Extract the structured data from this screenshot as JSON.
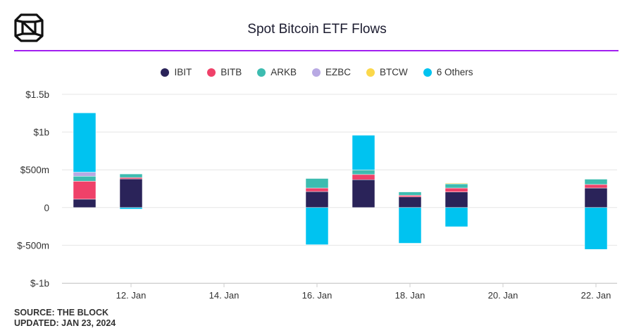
{
  "header": {
    "title": "Spot Bitcoin ETF Flows"
  },
  "footer": {
    "source": "SOURCE: THE BLOCK",
    "updated": "UPDATED: JAN 23, 2024"
  },
  "chart_data": {
    "type": "bar",
    "stacked": true,
    "title": "Spot Bitcoin ETF Flows",
    "xlabel": "",
    "ylabel": "",
    "legend": "top-center",
    "grid": true,
    "ylim": [
      -1000,
      1500
    ],
    "y_unit": "millions USD",
    "y_ticks": [
      {
        "value": 1500,
        "label": "$1.5b"
      },
      {
        "value": 1000,
        "label": "$1b"
      },
      {
        "value": 500,
        "label": "$500m"
      },
      {
        "value": 0,
        "label": "0"
      },
      {
        "value": -500,
        "label": "$-500m"
      },
      {
        "value": -1000,
        "label": "$-1b"
      }
    ],
    "x_ticks": [
      {
        "day": 12,
        "label": "12. Jan"
      },
      {
        "day": 14,
        "label": "14. Jan"
      },
      {
        "day": 16,
        "label": "16. Jan"
      },
      {
        "day": 18,
        "label": "18. Jan"
      },
      {
        "day": 20,
        "label": "20. Jan"
      },
      {
        "day": 22,
        "label": "22. Jan"
      }
    ],
    "categories": [
      "11. Jan",
      "12. Jan",
      "16. Jan",
      "17. Jan",
      "18. Jan",
      "19. Jan",
      "22. Jan"
    ],
    "days": [
      11,
      12,
      16,
      17,
      18,
      19,
      22
    ],
    "series": [
      {
        "name": "IBIT",
        "color": "#2a2359",
        "values": [
          111,
          380,
          212,
          369,
          141,
          207,
          259
        ]
      },
      {
        "name": "BITB",
        "color": "#ef4169",
        "values": [
          238,
          18,
          47,
          69,
          21,
          52,
          47
        ]
      },
      {
        "name": "ARKB",
        "color": "#3dbcb0",
        "values": [
          66,
          47,
          126,
          60,
          45,
          54,
          70
        ]
      },
      {
        "name": "EZBC",
        "color": "#b8a9e3",
        "values": [
          54,
          0,
          0,
          0,
          0,
          0,
          0
        ]
      },
      {
        "name": "BTCW",
        "color": "#fbd84b",
        "values": [
          0,
          0,
          0,
          0,
          0,
          10,
          0
        ]
      },
      {
        "name": "6 Others",
        "color": "#00c3f0",
        "values": [
          785,
          -20,
          -492,
          460,
          -473,
          -254,
          -554
        ]
      }
    ]
  }
}
